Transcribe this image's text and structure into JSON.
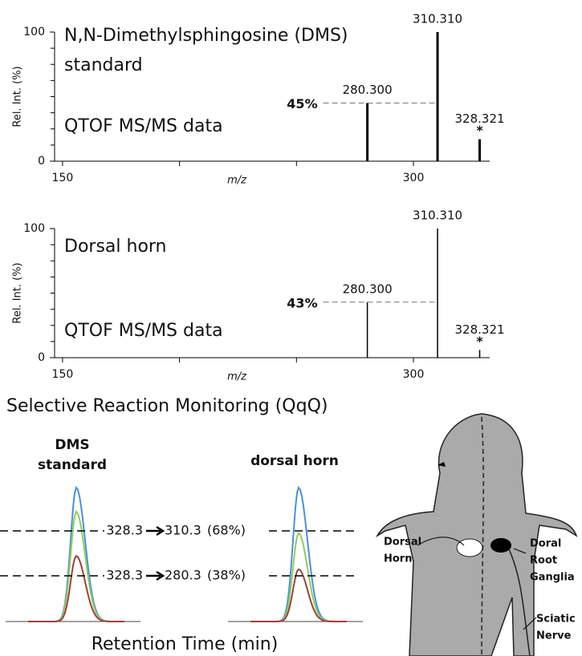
{
  "chart_data": [
    {
      "type": "stick",
      "title": "N,N-Dimethylsphingosine (DMS)",
      "subtitle": "standard",
      "annotation": "QTOF MS/MS data",
      "y_label": "Rel. Int. (%)",
      "x_label": "m/z",
      "xlim": [
        146.6,
        332.6
      ],
      "xticks": [
        150,
        300
      ],
      "xminor_ticks": [
        200,
        250
      ],
      "ylim": [
        0,
        100
      ],
      "yticks": [
        0,
        100
      ],
      "yminor_ticks": [
        12.5,
        25,
        37.5,
        50,
        62.5,
        75,
        87.5
      ],
      "x": [
        280.3,
        310.31,
        328.321
      ],
      "x_labels": [
        "280.300",
        "310.310",
        "328.321"
      ],
      "values": [
        45,
        100,
        17
      ],
      "peak_notes": [
        null,
        null,
        "*"
      ],
      "color": "#000000",
      "reference": {
        "value": 45,
        "label": "45%"
      }
    },
    {
      "type": "stick",
      "title": "Dorsal horn",
      "annotation": "QTOF MS/MS data",
      "y_label": "Rel. Int. (%)",
      "x_label": "m/z",
      "xlim": [
        146.6,
        332.6
      ],
      "xticks": [
        150,
        300
      ],
      "xminor_ticks": [
        200,
        250
      ],
      "ylim": [
        0,
        100
      ],
      "yticks": [
        0,
        100
      ],
      "yminor_ticks": [
        12.5,
        25,
        37.5,
        50,
        62.5,
        75,
        87.5
      ],
      "x": [
        280.3,
        310.31,
        328.321
      ],
      "x_labels": [
        "280.300",
        "310.310",
        "328.321"
      ],
      "values": [
        43,
        100,
        6
      ],
      "peak_notes": [
        null,
        null,
        "*"
      ],
      "color": "#000000",
      "reference": {
        "value": 43,
        "label": "43%"
      }
    },
    {
      "type": "chromatogram",
      "title": "Selective Reaction Monitoring (QqQ)",
      "x_label": "Retention Time (min)",
      "panels": [
        {
          "title": [
            "DMS",
            "standard"
          ],
          "peaks": [
            {
              "color": "#4a90d9",
              "height": 100
            },
            {
              "color": "#8fce5a",
              "height": 82
            },
            {
              "color": "#a0403a",
              "height": 49
            }
          ]
        },
        {
          "title": [
            "dorsal horn"
          ],
          "peaks": [
            {
              "color": "#4a90d9",
              "height": 100
            },
            {
              "color": "#8fce5a",
              "height": 66
            },
            {
              "color": "#a0403a",
              "height": 39
            }
          ]
        }
      ],
      "transitions": [
        {
          "from": "328.3",
          "to": "310.3",
          "ratio": "(68%)"
        },
        {
          "from": "328.3",
          "to": "280.3",
          "ratio": "(38%)"
        }
      ]
    }
  ],
  "diagram": {
    "labels": [
      {
        "lines": [
          "Dorsal",
          "Horn"
        ]
      },
      {
        "lines": [
          "Doral",
          "Root",
          "Ganglia"
        ]
      },
      {
        "lines": [
          "Sciatic",
          "Nerve"
        ]
      }
    ]
  }
}
